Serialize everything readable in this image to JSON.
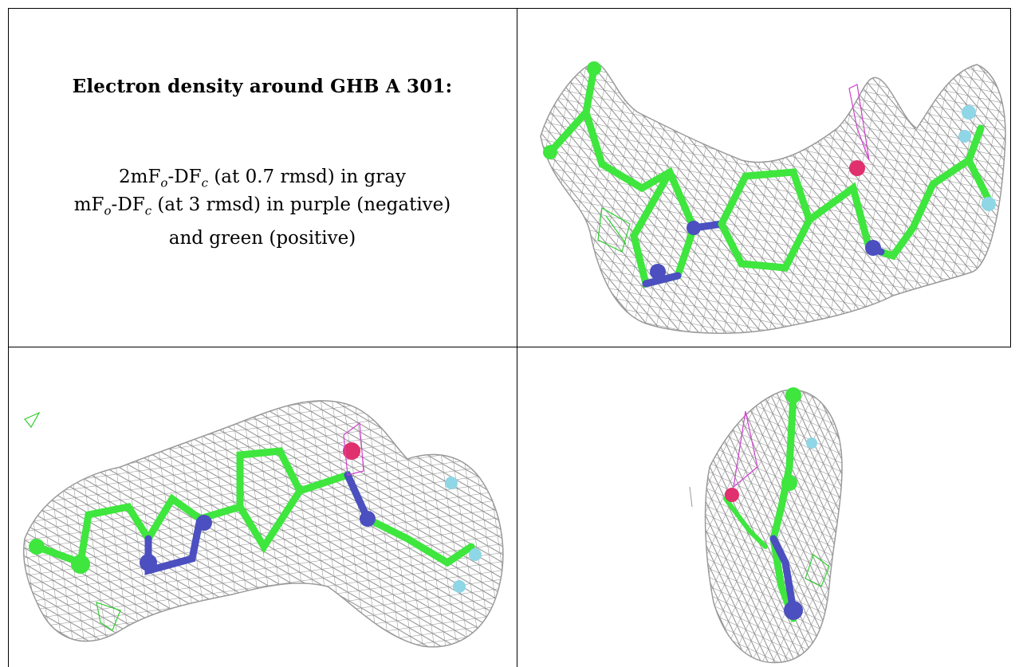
{
  "title": "Electron density around GHB A 301:",
  "caption_line1": {
    "a": "2mF",
    "o": "o",
    "b": "-DF",
    "c": "c",
    "d": " (at 0.7 rmsd) in gray"
  },
  "caption_line2": {
    "a": "mF",
    "o": "o",
    "b": "-DF",
    "c": "c",
    "d": " (at 3 rmsd) in purple (negative)"
  },
  "caption_line3": "and green (positive)",
  "colors": {
    "carbon": "#3ee63e",
    "nitrogen": "#4b4fc0",
    "oxygen": "#e0306e",
    "fluorine": "#8fd6e6",
    "mesh": "#8a8a8a",
    "neg_mesh": "#d040d0",
    "pos_mesh": "#2fd02f"
  },
  "panels": [
    "view-1",
    "view-2",
    "view-3"
  ]
}
